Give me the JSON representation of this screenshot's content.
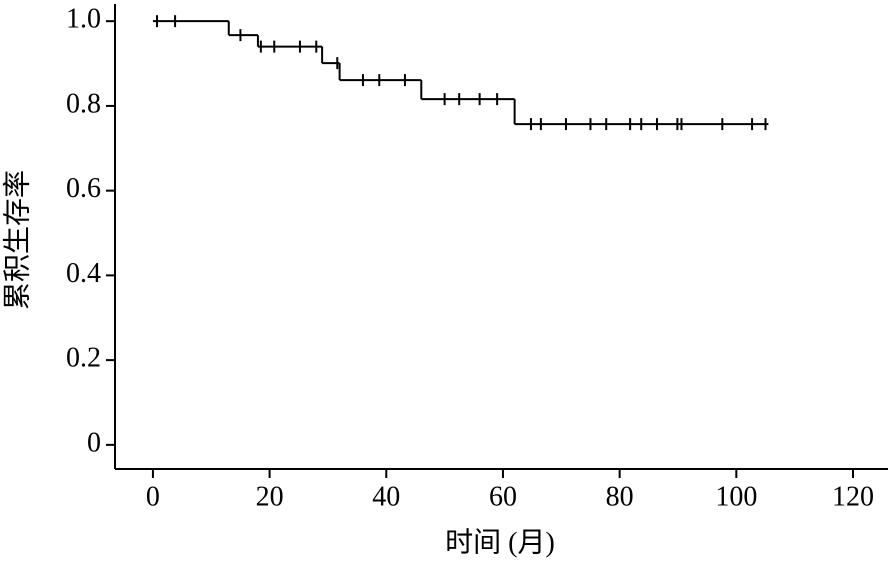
{
  "chart_data": {
    "type": "step",
    "x_label": "时间 (月)",
    "y_label": "累积生存率",
    "color": "#000000",
    "survival": {
      "x": [
        0,
        13,
        18,
        29,
        32,
        46,
        62,
        105.5
      ],
      "y": [
        1.0,
        0.967,
        0.94,
        0.901,
        0.861,
        0.816,
        0.757,
        0.757
      ]
    },
    "censored": {
      "x": [
        0.7,
        3.8,
        15,
        18.5,
        20.8,
        25.2,
        28,
        31.6,
        36,
        38.8,
        43.2,
        50,
        52.5,
        56,
        59,
        64.8,
        66.5,
        70.8,
        75,
        77.7,
        81.8,
        83.7,
        86.4,
        89.9,
        90.6,
        97.6,
        102.7,
        105
      ],
      "y": [
        1.0,
        1.0,
        0.967,
        0.94,
        0.94,
        0.94,
        0.94,
        0.901,
        0.861,
        0.861,
        0.861,
        0.816,
        0.816,
        0.816,
        0.816,
        0.757,
        0.757,
        0.757,
        0.757,
        0.757,
        0.757,
        0.757,
        0.757,
        0.757,
        0.757,
        0.757,
        0.757,
        0.757
      ]
    },
    "xlim": [
      -6.5,
      126
    ],
    "ylim": [
      -0.057,
      1.05
    ],
    "xticks": [
      0,
      20,
      40,
      60,
      80,
      100,
      120
    ],
    "yticks": [
      0,
      0.2,
      0.4,
      0.6,
      0.8,
      {
        "value": 1,
        "label": "1.0"
      }
    ]
  }
}
